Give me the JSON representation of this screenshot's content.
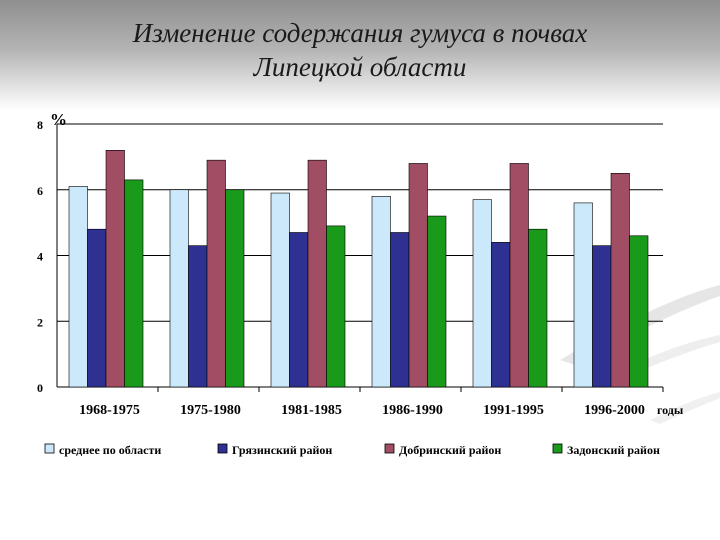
{
  "title_line1": "Изменение содержания гумуса в почвах",
  "title_line2": "Липецкой области",
  "chart_data": {
    "type": "bar",
    "title": "Изменение содержания гумуса в почвах Липецкой области",
    "ylabel": "%",
    "xlabel": "годы",
    "ylim": [
      0,
      8
    ],
    "yticks": [
      0,
      2,
      4,
      6,
      8
    ],
    "grid": true,
    "legend_position": "bottom",
    "categories": [
      "1968-1975",
      "1975-1980",
      "1981-1985",
      "1986-1990",
      "1991-1995",
      "1996-2000"
    ],
    "series": [
      {
        "name": "среднее по области",
        "color": "#cce8fb",
        "values": [
          6.1,
          6.0,
          5.9,
          5.8,
          5.7,
          5.6
        ]
      },
      {
        "name": "Грязинский район",
        "color": "#2e3192",
        "values": [
          4.8,
          4.3,
          4.7,
          4.7,
          4.4,
          4.3
        ]
      },
      {
        "name": "Добринский район",
        "color": "#a14d63",
        "values": [
          7.2,
          6.9,
          6.9,
          6.8,
          6.8,
          6.5
        ]
      },
      {
        "name": "Задонский район",
        "color": "#1a9a1a",
        "values": [
          6.3,
          6.0,
          4.9,
          5.2,
          4.8,
          4.6
        ]
      }
    ]
  }
}
